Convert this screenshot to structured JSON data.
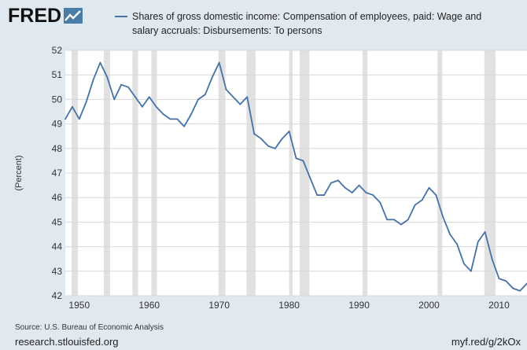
{
  "header": {
    "logo_text": "FRED",
    "logo_icon": "line-chart-icon"
  },
  "footer": {
    "source": "Source: U.S. Bureau of Economic Analysis",
    "url_left": "research.stlouisfed.org",
    "url_right": "myf.red/g/2kOx"
  },
  "colors": {
    "background": "#e1e9f0",
    "plot_background": "#ffffff",
    "series_line": "#4572a7",
    "recession_band": "#e1e1e1",
    "grid": "#d8d8d8"
  },
  "chart_data": {
    "type": "line",
    "title": "",
    "xlabel": "",
    "ylabel": "(Percent)",
    "xlim": [
      1948,
      2014
    ],
    "ylim": [
      42,
      52
    ],
    "x_ticks": [
      1950,
      1960,
      1970,
      1980,
      1990,
      2000,
      2010
    ],
    "y_ticks": [
      42,
      43,
      44,
      45,
      46,
      47,
      48,
      49,
      50,
      51,
      52
    ],
    "grid": "horizontal",
    "legend": "top",
    "recessions": [
      [
        1948.9,
        1949.8
      ],
      [
        1953.5,
        1954.4
      ],
      [
        1957.6,
        1958.4
      ],
      [
        1960.3,
        1961.1
      ],
      [
        1969.9,
        1970.9
      ],
      [
        1973.9,
        1975.2
      ],
      [
        1980.0,
        1980.5
      ],
      [
        1981.5,
        1982.9
      ],
      [
        1990.5,
        1991.2
      ],
      [
        2001.2,
        2001.9
      ],
      [
        2007.9,
        2009.5
      ]
    ],
    "series": [
      {
        "name": "Shares of gross domestic income: Compensation of employees, paid: Wage and salary accruals: Disbursements: To persons",
        "x": [
          1948,
          1949,
          1950,
          1951,
          1952,
          1953,
          1954,
          1955,
          1956,
          1957,
          1958,
          1959,
          1960,
          1961,
          1962,
          1963,
          1964,
          1965,
          1966,
          1967,
          1968,
          1969,
          1970,
          1971,
          1972,
          1973,
          1974,
          1975,
          1976,
          1977,
          1978,
          1979,
          1980,
          1981,
          1982,
          1983,
          1984,
          1985,
          1986,
          1987,
          1988,
          1989,
          1990,
          1991,
          1992,
          1993,
          1994,
          1995,
          1996,
          1997,
          1998,
          1999,
          2000,
          2001,
          2002,
          2003,
          2004,
          2005,
          2006,
          2007,
          2008,
          2009,
          2010,
          2011,
          2012,
          2013,
          2014
        ],
        "values": [
          49.2,
          49.7,
          49.2,
          49.9,
          50.8,
          51.5,
          50.9,
          50.0,
          50.6,
          50.5,
          50.1,
          49.7,
          50.1,
          49.7,
          49.4,
          49.2,
          49.2,
          48.9,
          49.4,
          50.0,
          50.2,
          50.9,
          51.5,
          50.4,
          50.1,
          49.8,
          50.1,
          48.6,
          48.4,
          48.1,
          48.0,
          48.4,
          48.7,
          47.6,
          47.5,
          46.8,
          46.1,
          46.1,
          46.6,
          46.7,
          46.4,
          46.2,
          46.5,
          46.2,
          46.1,
          45.8,
          45.1,
          45.1,
          44.9,
          45.1,
          45.7,
          45.9,
          46.4,
          46.1,
          45.2,
          44.5,
          44.1,
          43.3,
          43.0,
          44.2,
          44.6,
          43.5,
          42.7,
          42.6,
          42.3,
          42.2,
          42.5
        ]
      }
    ]
  }
}
